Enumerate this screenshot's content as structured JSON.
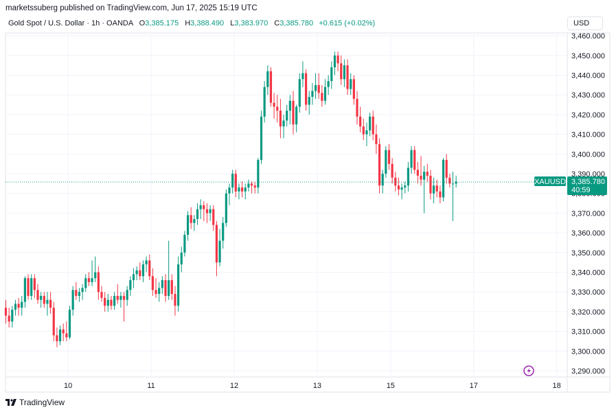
{
  "header": {
    "publisher_text": "marketssuberg published on TradingView.com, Jun 17, 2025 15:19 UTC"
  },
  "legend": {
    "symbol": "Gold Spot / U.S. Dollar · 1h · OANDA",
    "o_label": "O",
    "o_value": "3,385.175",
    "h_label": "H",
    "h_value": "3,388.490",
    "l_label": "L",
    "l_value": "3,383.970",
    "c_label": "C",
    "c_value": "3,385.780",
    "change": "+0.615 (+0.02%)"
  },
  "currency_button": "USD",
  "footer": {
    "brand": "TradingView"
  },
  "colors": {
    "up": "#089981",
    "down": "#f23645",
    "grid": "#f0f3fa",
    "text": "#131722",
    "border": "#e0e3eb"
  },
  "chart_data": {
    "type": "candlestick",
    "symbol": "XAUUSD",
    "interval": "1h",
    "currency": "USD",
    "ylim": [
      3285,
      3462
    ],
    "y_ticks": [
      3290,
      3300,
      3310,
      3320,
      3330,
      3340,
      3350,
      3360,
      3370,
      3380,
      3390,
      3400,
      3410,
      3420,
      3430,
      3440,
      3450,
      3460
    ],
    "y_tick_labels": [
      "3,290.000",
      "3,300.000",
      "3,310.000",
      "3,320.000",
      "3,330.000",
      "3,340.000",
      "3,350.000",
      "3,360.000",
      "3,370.000",
      "3,380.000",
      "3,390.000",
      "3,400.000",
      "3,410.000",
      "3,420.000",
      "3,430.000",
      "3,440.000",
      "3,450.000",
      "3,460.000"
    ],
    "x_ticks": [
      {
        "label": "10",
        "index": 19.5
      },
      {
        "label": "11",
        "index": 45.5
      },
      {
        "label": "12",
        "index": 71.5
      },
      {
        "label": "13",
        "index": 97.5
      },
      {
        "label": "15",
        "index": 120.5
      },
      {
        "label": "17",
        "index": 146.5
      },
      {
        "label": "18",
        "index": 172.5
      }
    ],
    "last_price": 3385.78,
    "last_price_label": "XAUUSD",
    "last_price_value": "3,385.780",
    "countdown": "40:59",
    "candles": [
      [
        3322,
        3326,
        3314,
        3318
      ],
      [
        3318,
        3322,
        3312,
        3315
      ],
      [
        3315,
        3323,
        3312,
        3321
      ],
      [
        3321,
        3326,
        3318,
        3324
      ],
      [
        3324,
        3327,
        3318,
        3322
      ],
      [
        3322,
        3328,
        3318,
        3325
      ],
      [
        3325,
        3338,
        3322,
        3337
      ],
      [
        3337,
        3339,
        3326,
        3328
      ],
      [
        3328,
        3339,
        3326,
        3337
      ],
      [
        3337,
        3339,
        3327,
        3331
      ],
      [
        3331,
        3334,
        3324,
        3326
      ],
      [
        3326,
        3330,
        3322,
        3328
      ],
      [
        3328,
        3330,
        3322,
        3324
      ],
      [
        3324,
        3330,
        3318,
        3326
      ],
      [
        3326,
        3330,
        3319,
        3322
      ],
      [
        3322,
        3325,
        3305,
        3308
      ],
      [
        3308,
        3312,
        3302,
        3305
      ],
      [
        3305,
        3313,
        3303,
        3311
      ],
      [
        3311,
        3314,
        3305,
        3309
      ],
      [
        3309,
        3315,
        3305,
        3307
      ],
      [
        3307,
        3323,
        3306,
        3321
      ],
      [
        3321,
        3333,
        3318,
        3331
      ],
      [
        3331,
        3335,
        3326,
        3328
      ],
      [
        3328,
        3332,
        3325,
        3330
      ],
      [
        3330,
        3334,
        3326,
        3332
      ],
      [
        3332,
        3339,
        3330,
        3337
      ],
      [
        3337,
        3340,
        3333,
        3335
      ],
      [
        3335,
        3346,
        3333,
        3337
      ],
      [
        3337,
        3348,
        3335,
        3340
      ],
      [
        3340,
        3343,
        3326,
        3330
      ],
      [
        3330,
        3333,
        3325,
        3327
      ],
      [
        3327,
        3330,
        3320,
        3323
      ],
      [
        3323,
        3329,
        3320,
        3326
      ],
      [
        3326,
        3328,
        3321,
        3323
      ],
      [
        3323,
        3330,
        3321,
        3328
      ],
      [
        3328,
        3334,
        3324,
        3326
      ],
      [
        3326,
        3330,
        3322,
        3328
      ],
      [
        3328,
        3330,
        3315,
        3326
      ],
      [
        3326,
        3333,
        3323,
        3331
      ],
      [
        3331,
        3338,
        3328,
        3336
      ],
      [
        3336,
        3342,
        3332,
        3339
      ],
      [
        3339,
        3343,
        3336,
        3341
      ],
      [
        3341,
        3345,
        3336,
        3338
      ],
      [
        3338,
        3346,
        3335,
        3344
      ],
      [
        3344,
        3348,
        3340,
        3346
      ],
      [
        3346,
        3349,
        3336,
        3338
      ],
      [
        3338,
        3342,
        3328,
        3331
      ],
      [
        3331,
        3337,
        3327,
        3329
      ],
      [
        3329,
        3335,
        3325,
        3332
      ],
      [
        3332,
        3338,
        3329,
        3336
      ],
      [
        3336,
        3339,
        3325,
        3328
      ],
      [
        3328,
        3356,
        3326,
        3336
      ],
      [
        3336,
        3339,
        3326,
        3329
      ],
      [
        3329,
        3333,
        3318,
        3323
      ],
      [
        3323,
        3348,
        3320,
        3344
      ],
      [
        3344,
        3353,
        3340,
        3350
      ],
      [
        3350,
        3361,
        3348,
        3359
      ],
      [
        3359,
        3371,
        3356,
        3369
      ],
      [
        3369,
        3373,
        3362,
        3365
      ],
      [
        3365,
        3369,
        3361,
        3367
      ],
      [
        3367,
        3375,
        3364,
        3372
      ],
      [
        3372,
        3377,
        3367,
        3374
      ],
      [
        3374,
        3376,
        3366,
        3372
      ],
      [
        3372,
        3375,
        3365,
        3370
      ],
      [
        3370,
        3374,
        3366,
        3372
      ],
      [
        3372,
        3374,
        3361,
        3364
      ],
      [
        3364,
        3366,
        3338,
        3345
      ],
      [
        3345,
        3362,
        3343,
        3356
      ],
      [
        3356,
        3368,
        3352,
        3365
      ],
      [
        3365,
        3382,
        3363,
        3380
      ],
      [
        3380,
        3385,
        3374,
        3383
      ],
      [
        3383,
        3392,
        3380,
        3390
      ],
      [
        3390,
        3392,
        3378,
        3381
      ],
      [
        3381,
        3385,
        3377,
        3383
      ],
      [
        3383,
        3386,
        3378,
        3381
      ],
      [
        3381,
        3385,
        3377,
        3383
      ],
      [
        3383,
        3387,
        3381,
        3385
      ],
      [
        3385,
        3386,
        3380,
        3384
      ],
      [
        3384,
        3386,
        3380,
        3383
      ],
      [
        3383,
        3398,
        3380,
        3397
      ],
      [
        3397,
        3422,
        3395,
        3419
      ],
      [
        3419,
        3437,
        3416,
        3434
      ],
      [
        3434,
        3445,
        3430,
        3442
      ],
      [
        3442,
        3444,
        3424,
        3426
      ],
      [
        3426,
        3431,
        3418,
        3424
      ],
      [
        3424,
        3430,
        3416,
        3422
      ],
      [
        3422,
        3428,
        3408,
        3414
      ],
      [
        3414,
        3420,
        3408,
        3417
      ],
      [
        3417,
        3425,
        3414,
        3422
      ],
      [
        3422,
        3430,
        3415,
        3427
      ],
      [
        3427,
        3432,
        3410,
        3415
      ],
      [
        3415,
        3425,
        3411,
        3424
      ],
      [
        3424,
        3441,
        3421,
        3438
      ],
      [
        3438,
        3447,
        3434,
        3441
      ],
      [
        3441,
        3443,
        3422,
        3425
      ],
      [
        3425,
        3432,
        3420,
        3429
      ],
      [
        3429,
        3436,
        3425,
        3432
      ],
      [
        3432,
        3441,
        3428,
        3435
      ],
      [
        3435,
        3441,
        3428,
        3431
      ],
      [
        3431,
        3435,
        3424,
        3427
      ],
      [
        3427,
        3438,
        3425,
        3434
      ],
      [
        3434,
        3440,
        3430,
        3437
      ],
      [
        3437,
        3447,
        3433,
        3444
      ],
      [
        3444,
        3452,
        3440,
        3450
      ],
      [
        3450,
        3452,
        3442,
        3446
      ],
      [
        3446,
        3450,
        3435,
        3438
      ],
      [
        3438,
        3448,
        3434,
        3445
      ],
      [
        3445,
        3448,
        3430,
        3433
      ],
      [
        3433,
        3441,
        3430,
        3438
      ],
      [
        3438,
        3440,
        3425,
        3428
      ],
      [
        3428,
        3432,
        3415,
        3419
      ],
      [
        3419,
        3424,
        3411,
        3414
      ],
      [
        3414,
        3418,
        3407,
        3410
      ],
      [
        3410,
        3416,
        3404,
        3412
      ],
      [
        3412,
        3421,
        3409,
        3419
      ],
      [
        3419,
        3422,
        3407,
        3410
      ],
      [
        3410,
        3415,
        3400,
        3405
      ],
      [
        3405,
        3408,
        3380,
        3384
      ],
      [
        3384,
        3392,
        3380,
        3390
      ],
      [
        3390,
        3404,
        3388,
        3402
      ],
      [
        3402,
        3405,
        3392,
        3395
      ],
      [
        3395,
        3398,
        3385,
        3388
      ],
      [
        3388,
        3391,
        3381,
        3384
      ],
      [
        3384,
        3388,
        3379,
        3382
      ],
      [
        3382,
        3385,
        3377,
        3383
      ],
      [
        3383,
        3386,
        3380,
        3384
      ],
      [
        3384,
        3396,
        3381,
        3393
      ],
      [
        3393,
        3404,
        3390,
        3402
      ],
      [
        3402,
        3404,
        3390,
        3392
      ],
      [
        3392,
        3396,
        3385,
        3389
      ],
      [
        3389,
        3399,
        3384,
        3387
      ],
      [
        3387,
        3394,
        3370,
        3391
      ],
      [
        3391,
        3395,
        3386,
        3389
      ],
      [
        3389,
        3392,
        3377,
        3380
      ],
      [
        3380,
        3388,
        3375,
        3384
      ],
      [
        3384,
        3387,
        3378,
        3381
      ],
      [
        3381,
        3384,
        3375,
        3378
      ],
      [
        3378,
        3398,
        3376,
        3397
      ],
      [
        3397,
        3400,
        3385,
        3388
      ],
      [
        3388,
        3390,
        3383,
        3385
      ],
      [
        3385,
        3391,
        3366,
        3385
      ],
      [
        3385,
        3389,
        3383,
        3386
      ]
    ]
  }
}
